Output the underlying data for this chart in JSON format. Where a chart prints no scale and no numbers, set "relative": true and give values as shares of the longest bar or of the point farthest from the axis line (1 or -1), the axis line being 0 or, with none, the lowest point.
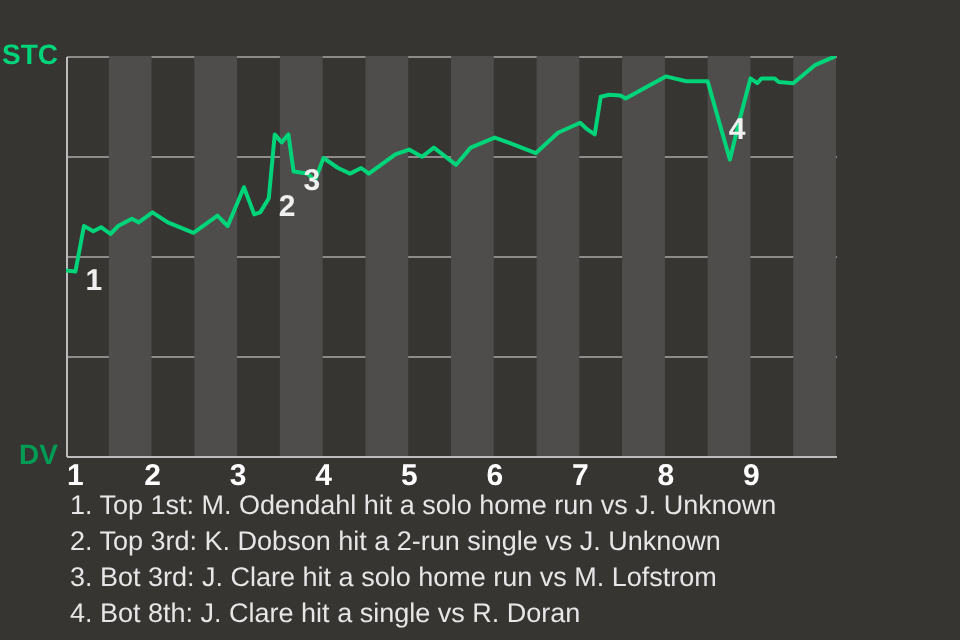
{
  "chart_data": {
    "type": "line",
    "x": [
      1.0,
      1.11,
      1.21,
      1.32,
      1.41,
      1.52,
      1.61,
      1.77,
      1.85,
      2.01,
      2.19,
      2.49,
      2.77,
      2.89,
      3.08,
      3.2,
      3.27,
      3.37,
      3.44,
      3.52,
      3.6,
      3.66,
      3.82,
      3.91,
      4.01,
      4.18,
      4.32,
      4.45,
      4.54,
      4.85,
      5.01,
      5.16,
      5.3,
      5.56,
      5.73,
      6.01,
      6.19,
      6.49,
      6.75,
      7.01,
      7.09,
      7.18,
      7.25,
      7.35,
      7.48,
      7.54,
      8.01,
      8.25,
      8.5,
      8.63,
      8.76,
      8.87,
      9.0,
      9.08,
      9.13,
      9.28,
      9.33,
      9.5,
      9.76,
      10.0
    ],
    "series": [
      {
        "color": "#00d47a",
        "values": [
          0.464,
          0.461,
          0.575,
          0.562,
          0.572,
          0.555,
          0.575,
          0.593,
          0.584,
          0.609,
          0.584,
          0.558,
          0.601,
          0.575,
          0.672,
          0.604,
          0.609,
          0.644,
          0.804,
          0.784,
          0.804,
          0.711,
          0.706,
          0.689,
          0.745,
          0.72,
          0.706,
          0.72,
          0.706,
          0.754,
          0.766,
          0.748,
          0.771,
          0.728,
          0.771,
          0.796,
          0.782,
          0.757,
          0.808,
          0.833,
          0.817,
          0.804,
          0.898,
          0.903,
          0.901,
          0.894,
          0.949,
          0.937,
          0.937,
          0.838,
          0.741,
          0.838,
          0.944,
          0.932,
          0.944,
          0.944,
          0.935,
          0.932,
          0.978,
          1
        ]
      }
    ],
    "relative": true,
    "xlim": [
      1,
      10
    ],
    "xticks": [
      1,
      2,
      3,
      4,
      5,
      6,
      7,
      8,
      9
    ],
    "grid": "y",
    "bands": [
      {
        "axis": "x",
        "from": 1.5,
        "to": 2,
        "color": "#4f4d4b"
      },
      {
        "axis": "x",
        "from": 2.5,
        "to": 3,
        "color": "#4f4d4b"
      },
      {
        "axis": "x",
        "from": 3.5,
        "to": 4,
        "color": "#4f4d4b"
      },
      {
        "axis": "x",
        "from": 4.5,
        "to": 5,
        "color": "#4f4d4b"
      },
      {
        "axis": "x",
        "from": 5.5,
        "to": 6,
        "color": "#4f4d4b"
      },
      {
        "axis": "x",
        "from": 6.5,
        "to": 7,
        "color": "#4f4d4b"
      },
      {
        "axis": "x",
        "from": 7.5,
        "to": 8,
        "color": "#4f4d4b"
      },
      {
        "axis": "x",
        "from": 8.5,
        "to": 9,
        "color": "#4f4d4b"
      },
      {
        "axis": "x",
        "from": 9.5,
        "to": 10,
        "color": "#4f4d4b"
      }
    ],
    "annotations": [
      "STC",
      "DV",
      {
        "text": "1",
        "x": 1.11,
        "y": 0.461
      },
      {
        "text": "2",
        "x": 3.37,
        "y": 0.644
      },
      {
        "text": "3",
        "x": 3.66,
        "y": 0.711
      },
      {
        "text": "4",
        "x": 8.63,
        "y": 0.838
      },
      "1. Top 1st: M. Odendahl hit a solo home run vs J. Unknown",
      "2. Top 3rd: K. Dobson hit a 2-run single vs J. Unknown",
      "3. Bot 3rd: J. Clare hit a solo home run vs M. Lofstrom",
      "4. Bot 8th: J. Clare hit a single vs R. Doran"
    ]
  }
}
